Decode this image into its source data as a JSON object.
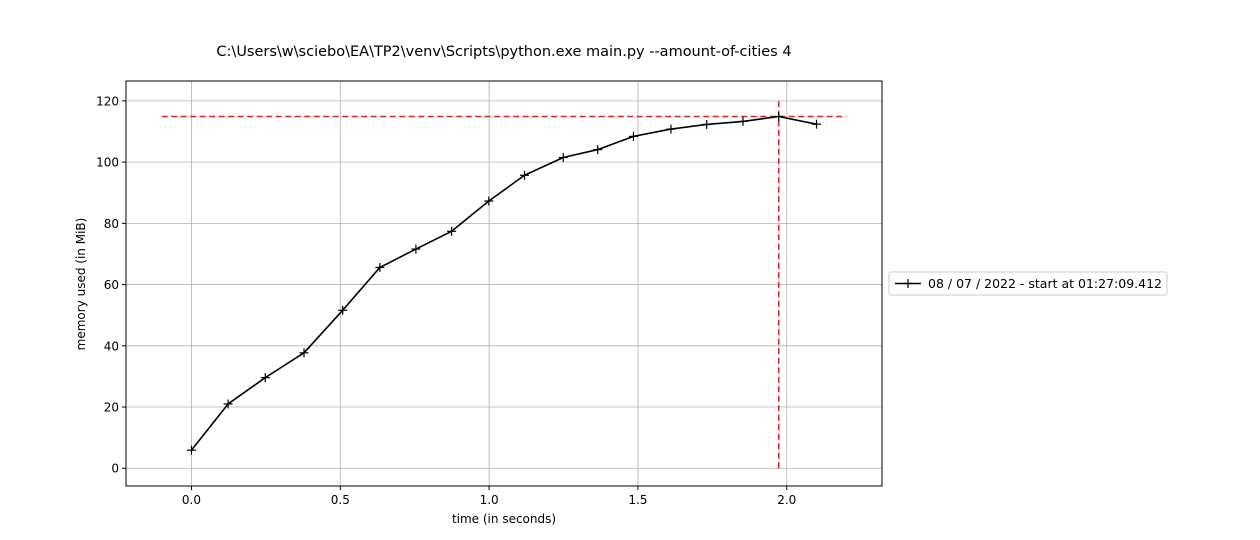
{
  "chart_data": {
    "type": "line",
    "title": "C:\\Users\\w\\sciebo\\EA\\TP2\\venv\\Scripts\\python.exe main.py --amount-of-cities 4",
    "xlabel": "time (in seconds)",
    "ylabel": "memory used (in MiB)",
    "xlim": [
      -0.22,
      2.32
    ],
    "ylim": [
      -5.8,
      126.5
    ],
    "x_ticks": [
      0.0,
      0.5,
      1.0,
      1.5,
      2.0
    ],
    "x_tick_labels": [
      "0.0",
      "0.5",
      "1.0",
      "1.5",
      "2.0"
    ],
    "y_ticks": [
      0,
      20,
      40,
      60,
      80,
      100,
      120
    ],
    "y_tick_labels": [
      "0",
      "20",
      "40",
      "60",
      "80",
      "100",
      "120"
    ],
    "grid": true,
    "legend_placement": "center-right-outside",
    "series": [
      {
        "name": "08 / 07 / 2022 - start at 01:27:09.412",
        "color": "#000000",
        "marker": "plus",
        "x": [
          0.0,
          0.123,
          0.248,
          0.378,
          0.508,
          0.633,
          0.754,
          0.874,
          0.999,
          1.119,
          1.249,
          1.365,
          1.485,
          1.611,
          1.731,
          1.853,
          1.973,
          2.1
        ],
        "y": [
          5.9,
          21.0,
          29.6,
          37.7,
          51.6,
          65.6,
          71.6,
          77.4,
          87.3,
          95.7,
          101.5,
          104.1,
          108.4,
          110.8,
          112.3,
          113.3,
          114.9,
          112.4
        ]
      }
    ],
    "reference_lines": [
      {
        "orientation": "horizontal",
        "value": 114.9,
        "from": -0.1,
        "to": 2.2,
        "color": "#d62728",
        "style": "dashed"
      },
      {
        "orientation": "vertical",
        "value": 1.973,
        "from": 0,
        "to": 120,
        "color": "#d62728",
        "style": "dashed"
      }
    ]
  }
}
